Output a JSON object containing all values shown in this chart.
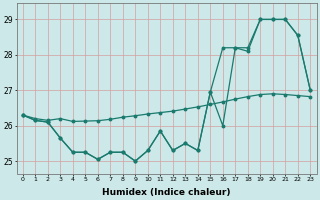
{
  "line_color": "#1a7a6e",
  "bg_color": "#cce8e8",
  "grid_color": "#d4a0a0",
  "xlabel": "Humidex (Indice chaleur)",
  "ylabel_ticks": [
    25,
    26,
    27,
    28,
    29
  ],
  "ylim": [
    24.65,
    29.45
  ],
  "xlim": [
    -0.5,
    23.5
  ],
  "series1_x": [
    0,
    1,
    2,
    3,
    4,
    5,
    6,
    7,
    8,
    9,
    10,
    11,
    12,
    13,
    14,
    15,
    16,
    17,
    18,
    19,
    20,
    21,
    22,
    23
  ],
  "series1_y": [
    26.3,
    26.15,
    26.1,
    25.65,
    25.25,
    25.25,
    25.05,
    25.25,
    25.25,
    25.0,
    25.3,
    25.85,
    25.3,
    25.5,
    25.3,
    26.95,
    26.0,
    28.2,
    28.1,
    29.0,
    29.0,
    29.0,
    28.55,
    27.0
  ],
  "series2_x": [
    0,
    1,
    2,
    3,
    4,
    5,
    6,
    7,
    8,
    9,
    10,
    11,
    12,
    13,
    14,
    15,
    16,
    17,
    18,
    19,
    20,
    21,
    22,
    23
  ],
  "series2_y": [
    26.3,
    26.15,
    26.1,
    25.65,
    25.25,
    25.25,
    25.05,
    25.25,
    25.25,
    25.0,
    25.3,
    25.85,
    25.3,
    25.5,
    25.3,
    26.95,
    28.2,
    28.2,
    28.2,
    29.0,
    29.0,
    29.0,
    28.55,
    27.0
  ],
  "series3_x": [
    0,
    1,
    2,
    3,
    4,
    5,
    6,
    7,
    8,
    9,
    10,
    11,
    12,
    13,
    14,
    15,
    16,
    17,
    18,
    19,
    20,
    21,
    22,
    23
  ],
  "series3_y": [
    26.3,
    26.2,
    26.15,
    26.2,
    26.12,
    26.13,
    26.14,
    26.18,
    26.24,
    26.28,
    26.33,
    26.37,
    26.41,
    26.47,
    26.53,
    26.6,
    26.67,
    26.75,
    26.82,
    26.88,
    26.9,
    26.88,
    26.85,
    26.82
  ]
}
